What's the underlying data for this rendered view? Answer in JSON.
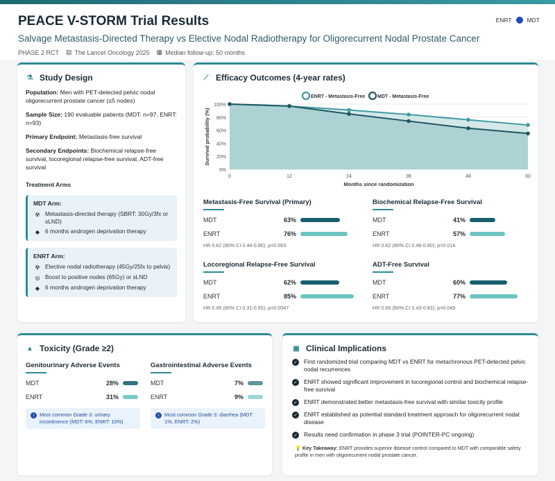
{
  "header": {
    "title": "PEACE V-STORM Trial Results",
    "subtitle": "Salvage Metastasis-Directed Therapy vs Elective Nodal Radiotherapy for Oligorecurrent Nodal Prostate Cancer",
    "meta": [
      "PHASE 2 RCT",
      "The Lancet Oncology 2025",
      "Median follow-up: 50 months"
    ],
    "legend": [
      "ENRT",
      "MDT"
    ]
  },
  "study": {
    "title": "Study Design",
    "items": [
      {
        "label": "Population:",
        "text": "Men with PET-detected pelvic nodal oligorecurrent prostate cancer (≤5 nodes)"
      },
      {
        "label": "Sample Size:",
        "text": "190 evaluable patients (MDT: n=97, ENRT: n=93)"
      },
      {
        "label": "Primary Endpoint:",
        "text": "Metastasis-free survival"
      },
      {
        "label": "Secondary Endpoints:",
        "text": "Biochemical relapse-free survival, locoregional relapse-free survival, ADT-free survival"
      }
    ],
    "arms_title": "Treatment Arms",
    "mdt_arm": {
      "title": "MDT Arm:",
      "items": [
        "Metastasis-directed therapy (SBRT: 30Gy/3fx or sLND)",
        "6 months androgen deprivation therapy"
      ]
    },
    "enrt_arm": {
      "title": "ENRT Arm:",
      "items": [
        "Elective nodal radiotherapy (45Gy/25fx to pelvis)",
        "Boost to positive nodes (65Gy) or sLND",
        "6 months androgen deprivation therapy"
      ]
    }
  },
  "efficacy": {
    "title": "Efficacy Outcomes (4-year rates)",
    "outcomes": [
      {
        "title": "Metastasis-Free Survival (Primary)",
        "mdt": 63,
        "enrt": 76,
        "mdt_label": "63%",
        "enrt_label": "76%",
        "hr": "HR 0.62 (80% CI 0.44-0.86); p=0.063"
      },
      {
        "title": "Biochemical Relapse-Free Survival",
        "mdt": 41,
        "enrt": 57,
        "mdt_label": "41%",
        "enrt_label": "57%",
        "hr": "HR 0.62 (80% CI 0.48-0.80); p=0.014"
      },
      {
        "title": "Locoregional Relapse-Free Survival",
        "mdt": 62,
        "enrt": 85,
        "mdt_label": "62%",
        "enrt_label": "85%",
        "hr": "HR 0.45 (80% CI 0.31-0.65); p=0.0047"
      },
      {
        "title": "ADT-Free Survival",
        "mdt": 60,
        "enrt": 77,
        "mdt_label": "60%",
        "enrt_label": "77%",
        "hr": "HR 0.60 (80% CI 0.43-0.83); p=0.049"
      }
    ],
    "arm_labels": {
      "mdt": "MDT",
      "enrt": "ENRT"
    }
  },
  "chart_data": {
    "type": "line",
    "x": [
      0,
      12,
      24,
      36,
      48,
      60
    ],
    "series": [
      {
        "name": "ENRT - Metastasis-Free",
        "values": [
          100,
          97,
          91,
          84,
          76,
          68
        ],
        "color": "#3f9aa3"
      },
      {
        "name": "MDT - Metastasis-Free",
        "values": [
          100,
          97,
          85,
          74,
          63,
          55
        ],
        "color": "#1d5660"
      }
    ],
    "xlabel": "Months since randomization",
    "ylabel": "Survival probability (%)",
    "xticks": [
      "0",
      "12",
      "24",
      "36",
      "48",
      "60"
    ],
    "yticks": [
      "0%",
      "20%",
      "40%",
      "60%",
      "80%",
      "100%"
    ],
    "ylim": [
      0,
      100
    ],
    "xlim": [
      0,
      60
    ],
    "legend_position": "top"
  },
  "toxicity": {
    "title": "Toxicity (Grade ≥2)",
    "gu": {
      "title": "Genitourinary Adverse Events",
      "mdt": 28,
      "enrt": 31,
      "mdt_label": "28%",
      "enrt_label": "31%",
      "note": "Most common Grade 3: urinary incontinence (MDT: 6%, ENRT: 10%)"
    },
    "gi": {
      "title": "Gastrointestinal Adverse Events",
      "mdt": 7,
      "enrt": 9,
      "mdt_label": "7%",
      "enrt_label": "9%",
      "note": "Most common Grade 3: diarrhea (MDT: 1%, ENRT: 2%)"
    }
  },
  "clinical": {
    "title": "Clinical Implications",
    "items": [
      "First randomized trial comparing MDT vs ENRT for metachronous PET-detected pelvic nodal recurrences",
      "ENRT showed significant improvement in locoregional control and biochemical relapse-free survival",
      "ENRT demonstrated better metastasis-free survival with similar toxicity profile",
      "ENRT established as potential standard treatment approach for oligorecurrent nodal disease",
      "Results need confirmation in phase 3 trial (POINTER-PC ongoing)"
    ],
    "takeaway_label": "Key Takeaway:",
    "takeaway": "ENRT provides superior disease control compared to MDT with comparable safety profile in men with oligorecurrent nodal prostate cancer."
  },
  "colors": {
    "accent": "#2e8a93",
    "mdt": "#16606b",
    "enrt": "#6cc4c0"
  }
}
